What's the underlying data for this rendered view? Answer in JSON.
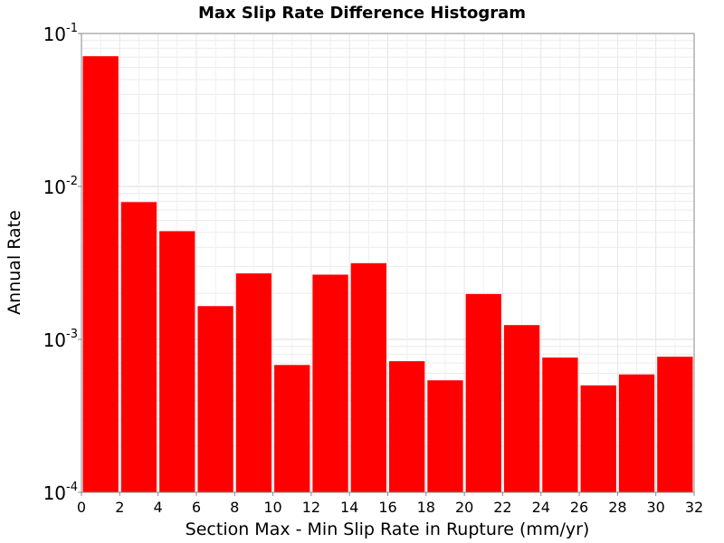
{
  "chart_data": {
    "type": "bar",
    "title": "Max Slip Rate Difference Histogram",
    "xlabel": "Section Max - Min Slip Rate in Rupture (mm/yr)",
    "ylabel": "Annual Rate",
    "yscale": "log",
    "xlim": [
      0,
      32
    ],
    "ylim": [
      0.0001,
      0.1
    ],
    "bin_width": 2,
    "x_ticks": [
      0,
      2,
      4,
      6,
      8,
      10,
      12,
      14,
      16,
      18,
      20,
      22,
      24,
      26,
      28,
      30,
      32
    ],
    "y_ticks": [
      {
        "base": "10",
        "exp": "-4",
        "value": 0.0001
      },
      {
        "base": "10",
        "exp": "-3",
        "value": 0.001
      },
      {
        "base": "10",
        "exp": "-2",
        "value": 0.01
      },
      {
        "base": "10",
        "exp": "-1",
        "value": 0.1
      }
    ],
    "bins": [
      {
        "start": 0,
        "end": 2,
        "value": 0.071
      },
      {
        "start": 2,
        "end": 4,
        "value": 0.0079
      },
      {
        "start": 4,
        "end": 6,
        "value": 0.0051
      },
      {
        "start": 6,
        "end": 8,
        "value": 0.00165
      },
      {
        "start": 8,
        "end": 10,
        "value": 0.0027
      },
      {
        "start": 10,
        "end": 12,
        "value": 0.00068
      },
      {
        "start": 12,
        "end": 14,
        "value": 0.00265
      },
      {
        "start": 14,
        "end": 16,
        "value": 0.00315
      },
      {
        "start": 16,
        "end": 18,
        "value": 0.00072
      },
      {
        "start": 18,
        "end": 20,
        "value": 0.00054
      },
      {
        "start": 20,
        "end": 22,
        "value": 0.00198
      },
      {
        "start": 22,
        "end": 24,
        "value": 0.00124
      },
      {
        "start": 24,
        "end": 26,
        "value": 0.00076
      },
      {
        "start": 26,
        "end": 28,
        "value": 0.0005
      },
      {
        "start": 28,
        "end": 30,
        "value": 0.00059
      },
      {
        "start": 30,
        "end": 32,
        "value": 0.00077
      }
    ],
    "bar_color": "#ff0000",
    "grid": true,
    "legend": "none"
  }
}
